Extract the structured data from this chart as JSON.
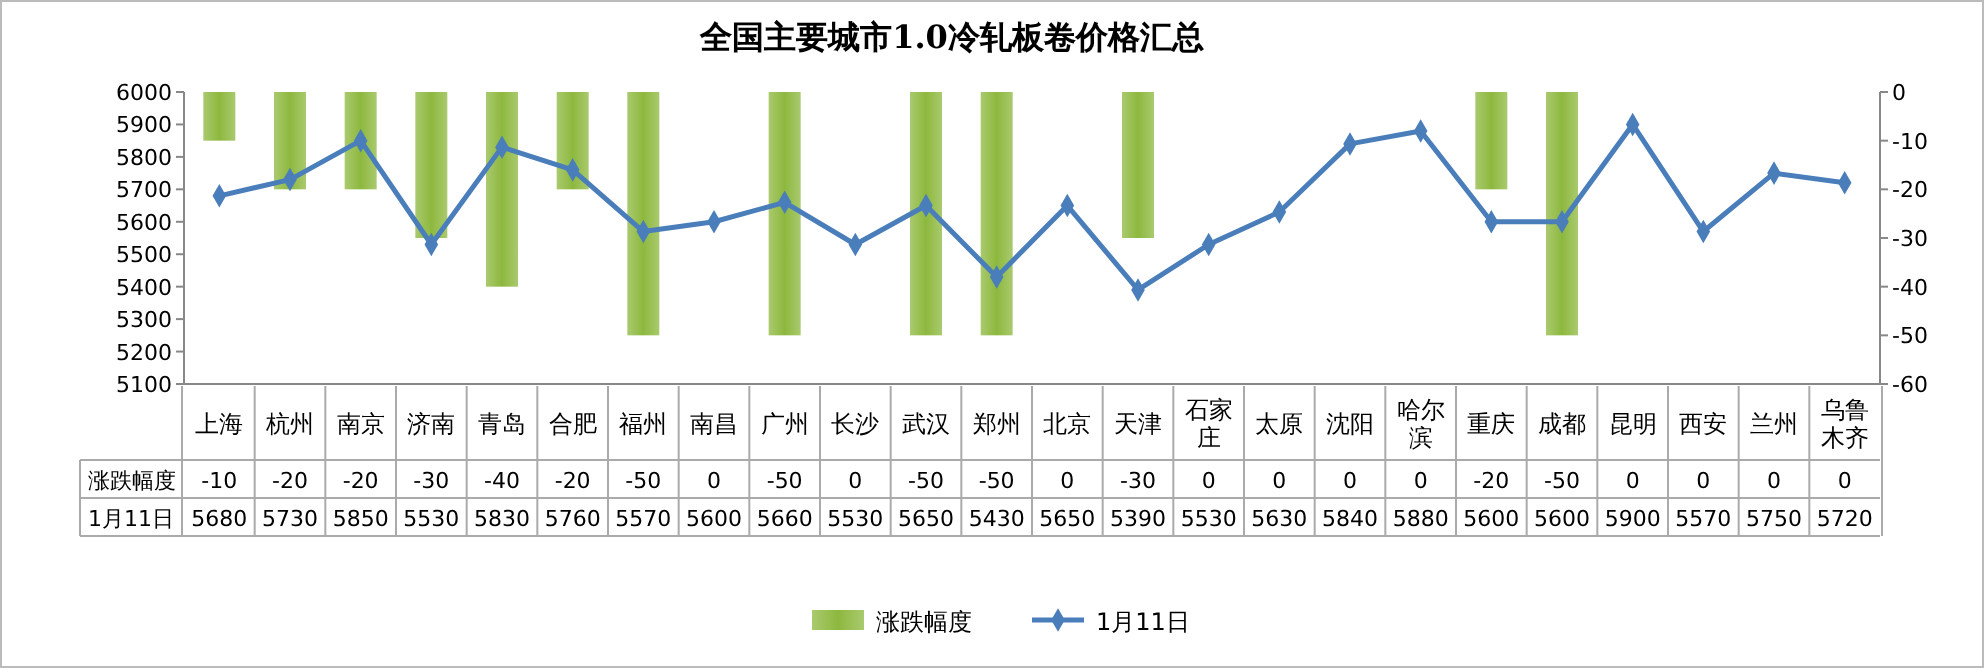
{
  "chart_data": {
    "type": "bar",
    "title": "全国主要城市1.0冷轧板卷价格汇总",
    "categories": [
      "上海",
      "杭州",
      "南京",
      "济南",
      "青岛",
      "合肥",
      "福州",
      "南昌",
      "广州",
      "长沙",
      "武汉",
      "郑州",
      "北京",
      "天津",
      "石家庄",
      "太原",
      "沈阳",
      "哈尔滨",
      "重庆",
      "成都",
      "昆明",
      "西安",
      "兰州",
      "乌鲁木齐"
    ],
    "series": [
      {
        "name": "涨跌幅度",
        "axis": "y2",
        "color": "#8db83e",
        "values": [
          -10,
          -20,
          -20,
          -30,
          -40,
          -20,
          -50,
          0,
          -50,
          0,
          -50,
          -50,
          0,
          -30,
          0,
          0,
          0,
          0,
          -20,
          -50,
          0,
          0,
          0,
          0
        ]
      },
      {
        "name": "1月11日",
        "type": "line",
        "axis": "y",
        "color": "#4a7ebb",
        "values": [
          5680,
          5730,
          5850,
          5530,
          5830,
          5760,
          5570,
          5600,
          5660,
          5530,
          5650,
          5430,
          5650,
          5390,
          5530,
          5630,
          5840,
          5880,
          5600,
          5600,
          5900,
          5570,
          5750,
          5720
        ]
      }
    ],
    "ylim": [
      5100,
      6000
    ],
    "yticks": [
      5100,
      5200,
      5300,
      5400,
      5500,
      5600,
      5700,
      5800,
      5900,
      6000
    ],
    "y2lim": [
      -60,
      0
    ],
    "y2ticks": [
      -60,
      -50,
      -40,
      -30,
      -20,
      -10,
      0
    ],
    "marker": "diamond",
    "data_labels": true,
    "legend": "bottom"
  }
}
